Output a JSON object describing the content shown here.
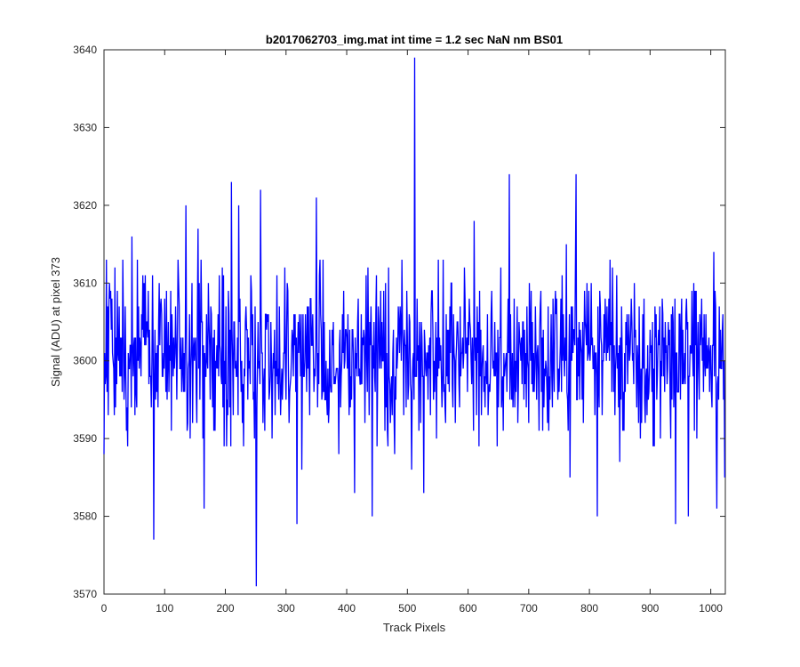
{
  "chart_data": {
    "type": "line",
    "title": "b2017062703_img.mat int time = 1.2 sec  NaN nm BS01",
    "xlabel": "Track Pixels",
    "ylabel": "Signal (ADU) at pixel 373",
    "xlim": [
      0,
      1024
    ],
    "ylim": [
      3570,
      3640
    ],
    "xticks": [
      0,
      100,
      200,
      300,
      400,
      500,
      600,
      700,
      800,
      900,
      1000
    ],
    "yticks": [
      3570,
      3580,
      3590,
      3600,
      3610,
      3620,
      3630,
      3640
    ],
    "grid": false,
    "series": [
      {
        "color": "#0000ff",
        "n_points": 1024,
        "baseline": 3600.5,
        "noise_sd": 5.3,
        "seed": 20170627,
        "notable_points": [
          {
            "x": 0,
            "y": 3588
          },
          {
            "x": 4,
            "y": 3613
          },
          {
            "x": 46,
            "y": 3616
          },
          {
            "x": 82,
            "y": 3577
          },
          {
            "x": 135,
            "y": 3620
          },
          {
            "x": 155,
            "y": 3617
          },
          {
            "x": 165,
            "y": 3581
          },
          {
            "x": 210,
            "y": 3623
          },
          {
            "x": 222,
            "y": 3620
          },
          {
            "x": 251,
            "y": 3571
          },
          {
            "x": 258,
            "y": 3622
          },
          {
            "x": 318,
            "y": 3579
          },
          {
            "x": 350,
            "y": 3621
          },
          {
            "x": 442,
            "y": 3580
          },
          {
            "x": 512,
            "y": 3639
          },
          {
            "x": 610,
            "y": 3618
          },
          {
            "x": 668,
            "y": 3624
          },
          {
            "x": 762,
            "y": 3615
          },
          {
            "x": 768,
            "y": 3585
          },
          {
            "x": 778,
            "y": 3624
          },
          {
            "x": 813,
            "y": 3580
          },
          {
            "x": 942,
            "y": 3579
          },
          {
            "x": 963,
            "y": 3580
          },
          {
            "x": 1005,
            "y": 3614
          },
          {
            "x": 1010,
            "y": 3581
          }
        ]
      }
    ]
  }
}
